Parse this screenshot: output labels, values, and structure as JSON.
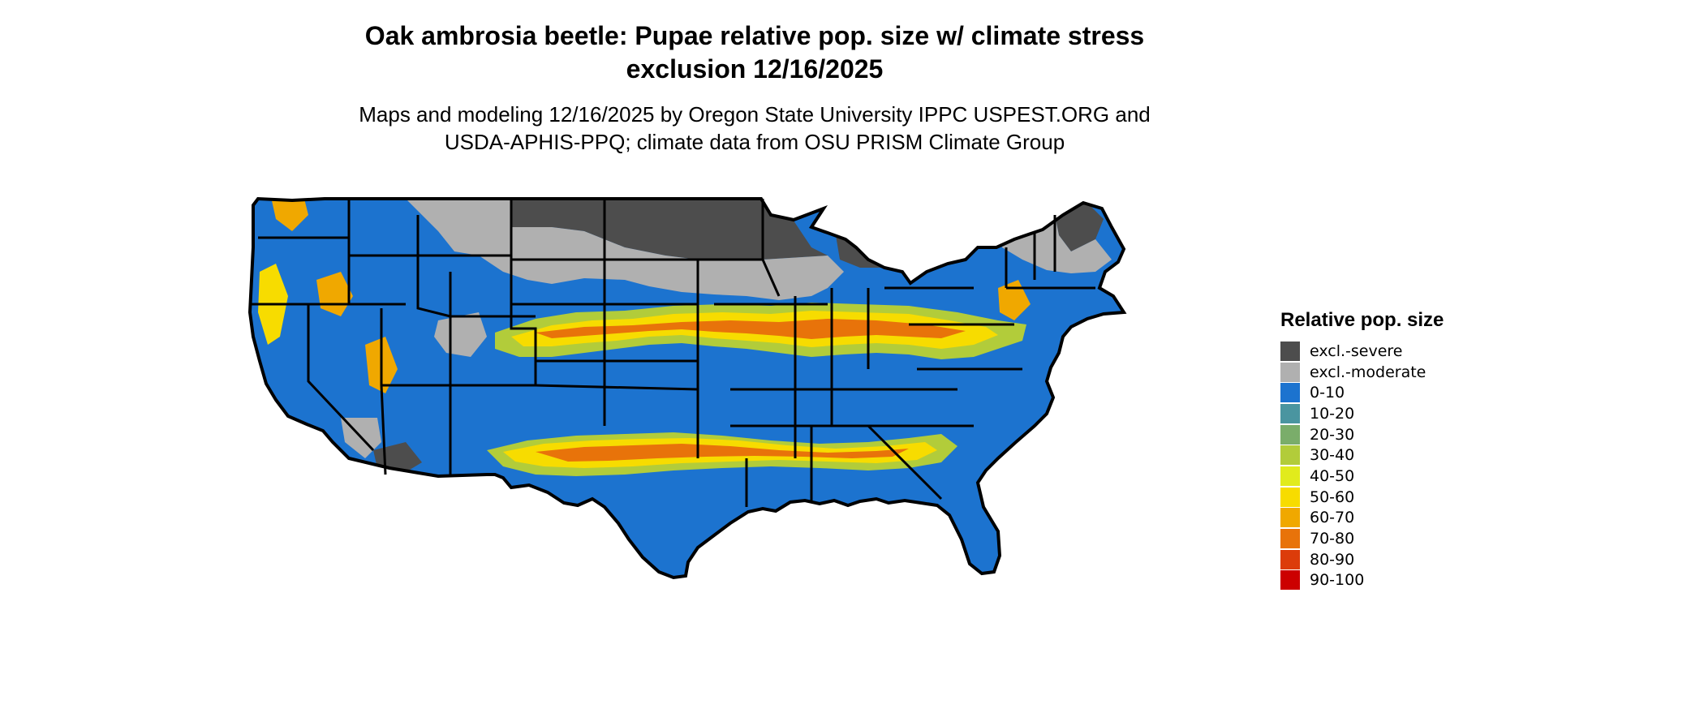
{
  "title_line1": "Oak ambrosia beetle: Pupae relative pop. size w/ climate stress",
  "title_line2": "exclusion 12/16/2025",
  "subtitle_line1": "Maps and modeling 12/16/2025 by Oregon State University IPPC USPEST.ORG and",
  "subtitle_line2": "USDA-APHIS-PPQ; climate data from OSU PRISM Climate Group",
  "legend": {
    "title": "Relative pop. size",
    "items": [
      {
        "label": "excl.-severe",
        "color": "#4d4d4d"
      },
      {
        "label": "excl.-moderate",
        "color": "#b0b0b0"
      },
      {
        "label": "0-10",
        "color": "#1c73cf"
      },
      {
        "label": "10-20",
        "color": "#4a95a0"
      },
      {
        "label": "20-30",
        "color": "#7aad6a"
      },
      {
        "label": "30-40",
        "color": "#b2cc3a"
      },
      {
        "label": "40-50",
        "color": "#e1eb1c"
      },
      {
        "label": "50-60",
        "color": "#f7dc00"
      },
      {
        "label": "60-70",
        "color": "#f0a800"
      },
      {
        "label": "70-80",
        "color": "#e8730a"
      },
      {
        "label": "80-90",
        "color": "#dc3c0a"
      },
      {
        "label": "90-100",
        "color": "#cc0000"
      }
    ]
  }
}
